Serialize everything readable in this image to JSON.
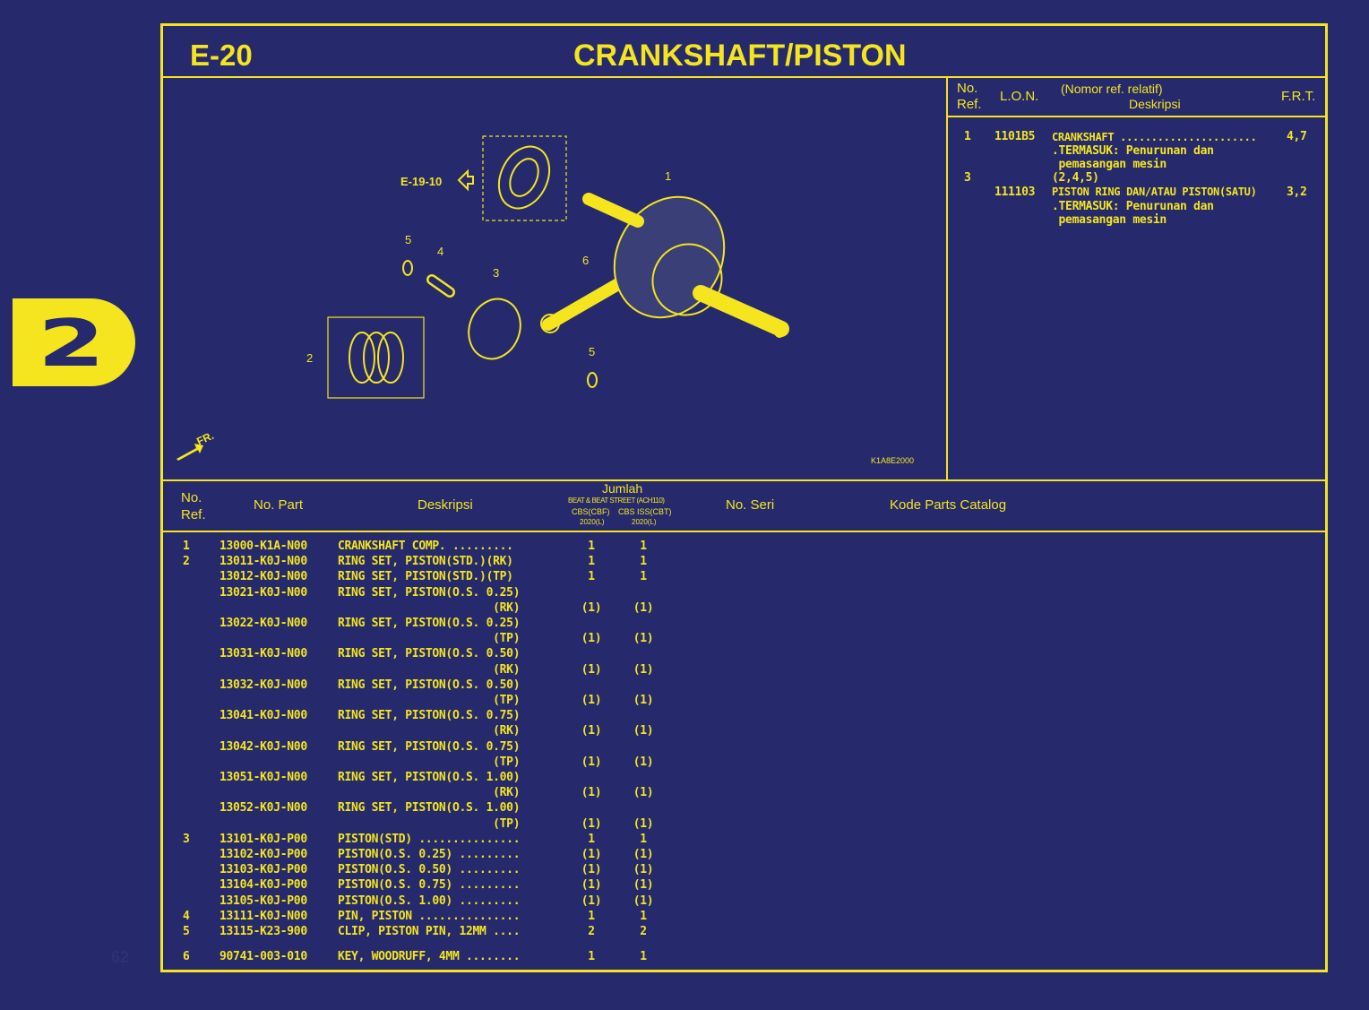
{
  "section_tab": "2",
  "page_number": "62",
  "header": {
    "code": "E-20",
    "title": "CRANKSHAFT/PISTON"
  },
  "diagram": {
    "reference_label": "E-19-10",
    "callouts": [
      "1",
      "2",
      "3",
      "4",
      "5",
      "5",
      "6"
    ],
    "front_label": "FR.",
    "drawing_code": "K1A8E2000",
    "colors": {
      "background": "#262a6c",
      "line": "#f4e51f"
    }
  },
  "frt_table": {
    "headers": {
      "ref": "No.\nRef.",
      "lon": "L.O.N.",
      "desc_top": "(Nomor ref. relatif)",
      "desc": "Deskripsi",
      "frt": "F.R.T."
    },
    "entries": [
      {
        "ref": "1",
        "lon": "1101B5",
        "desc": "CRANKSHAFT ......................",
        "frt": "4,7",
        "notes": [
          ".TERMASUK: Penurunan dan",
          " pemasangan mesin"
        ]
      },
      {
        "ref": "3",
        "lon": "",
        "desc": "(2,4,5)",
        "frt": "",
        "notes": []
      },
      {
        "ref": "",
        "lon": "111103",
        "desc": "PISTON RING DAN/ATAU PISTON(SATU)",
        "frt": "3,2",
        "notes": [
          ".TERMASUK: Penurunan dan",
          " pemasangan mesin"
        ]
      }
    ]
  },
  "parts_table": {
    "headers": {
      "ref": "No.\nRef.",
      "part": "No. Part",
      "desc": "Deskripsi",
      "qty": "Jumlah",
      "model": "BEAT & BEAT STREET (ACH110)",
      "col1": "CBS(CBF)",
      "col1_year": "2020(L)",
      "col2": "CBS ISS(CBT)",
      "col2_year": "2020(L)",
      "serial": "No. Seri",
      "catalog": "Kode Parts Catalog"
    },
    "rows": [
      {
        "ref": "1",
        "part": "13000-K1A-N00",
        "desc": "CRANKSHAFT COMP. .........",
        "q1": "1",
        "q2": "1"
      },
      {
        "ref": "2",
        "part": "13011-K0J-N00",
        "desc": "RING SET, PISTON(STD.)(RK)",
        "q1": "1",
        "q2": "1"
      },
      {
        "ref": "",
        "part": "13012-K0J-N00",
        "desc": "RING SET, PISTON(STD.)(TP)",
        "q1": "1",
        "q2": "1"
      },
      {
        "ref": "",
        "part": "13021-K0J-N00",
        "desc": "RING SET, PISTON(O.S. 0.25)",
        "q1": "",
        "q2": ""
      },
      {
        "ref": "",
        "part": "",
        "desc": "                       (RK)",
        "q1": "(1)",
        "q2": "(1)"
      },
      {
        "ref": "",
        "part": "13022-K0J-N00",
        "desc": "RING SET, PISTON(O.S. 0.25)",
        "q1": "",
        "q2": ""
      },
      {
        "ref": "",
        "part": "",
        "desc": "                       (TP)",
        "q1": "(1)",
        "q2": "(1)"
      },
      {
        "ref": "",
        "part": "13031-K0J-N00",
        "desc": "RING SET, PISTON(O.S. 0.50)",
        "q1": "",
        "q2": ""
      },
      {
        "ref": "",
        "part": "",
        "desc": "                       (RK)",
        "q1": "(1)",
        "q2": "(1)"
      },
      {
        "ref": "",
        "part": "13032-K0J-N00",
        "desc": "RING SET, PISTON(O.S. 0.50)",
        "q1": "",
        "q2": ""
      },
      {
        "ref": "",
        "part": "",
        "desc": "                       (TP)",
        "q1": "(1)",
        "q2": "(1)"
      },
      {
        "ref": "",
        "part": "13041-K0J-N00",
        "desc": "RING SET, PISTON(O.S. 0.75)",
        "q1": "",
        "q2": ""
      },
      {
        "ref": "",
        "part": "",
        "desc": "                       (RK)",
        "q1": "(1)",
        "q2": "(1)"
      },
      {
        "ref": "",
        "part": "13042-K0J-N00",
        "desc": "RING SET, PISTON(O.S. 0.75)",
        "q1": "",
        "q2": ""
      },
      {
        "ref": "",
        "part": "",
        "desc": "                       (TP)",
        "q1": "(1)",
        "q2": "(1)"
      },
      {
        "ref": "",
        "part": "13051-K0J-N00",
        "desc": "RING SET, PISTON(O.S. 1.00)",
        "q1": "",
        "q2": ""
      },
      {
        "ref": "",
        "part": "",
        "desc": "                       (RK)",
        "q1": "(1)",
        "q2": "(1)"
      },
      {
        "ref": "",
        "part": "13052-K0J-N00",
        "desc": "RING SET, PISTON(O.S. 1.00)",
        "q1": "",
        "q2": ""
      },
      {
        "ref": "",
        "part": "",
        "desc": "                       (TP)",
        "q1": "(1)",
        "q2": "(1)"
      },
      {
        "ref": "3",
        "part": "13101-K0J-P00",
        "desc": "PISTON(STD) ...............",
        "q1": "1",
        "q2": "1"
      },
      {
        "ref": "",
        "part": "13102-K0J-P00",
        "desc": "PISTON(O.S. 0.25) .........",
        "q1": "(1)",
        "q2": "(1)"
      },
      {
        "ref": "",
        "part": "13103-K0J-P00",
        "desc": "PISTON(O.S. 0.50) .........",
        "q1": "(1)",
        "q2": "(1)"
      },
      {
        "ref": "",
        "part": "13104-K0J-P00",
        "desc": "PISTON(O.S. 0.75) .........",
        "q1": "(1)",
        "q2": "(1)"
      },
      {
        "ref": "",
        "part": "13105-K0J-P00",
        "desc": "PISTON(O.S. 1.00) .........",
        "q1": "(1)",
        "q2": "(1)"
      },
      {
        "ref": "4",
        "part": "13111-K0J-N00",
        "desc": "PIN, PISTON ...............",
        "q1": "1",
        "q2": "1"
      },
      {
        "ref": "5",
        "part": "13115-K23-900",
        "desc": "CLIP, PISTON PIN, 12MM ....",
        "q1": "2",
        "q2": "2"
      },
      {
        "ref": "6",
        "part": "90741-003-010",
        "desc": "KEY, WOODRUFF, 4MM ........",
        "q1": "1",
        "q2": "1"
      }
    ]
  }
}
